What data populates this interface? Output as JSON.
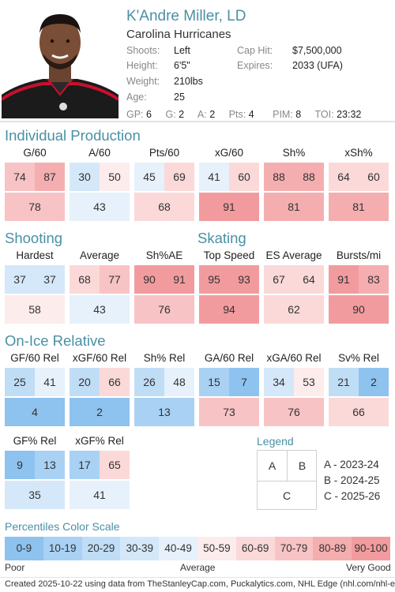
{
  "player": {
    "name": "K'Andre Miller, LD",
    "team": "Carolina Hurricanes",
    "shoots_label": "Shoots:",
    "shoots": "Left",
    "height_label": "Height:",
    "height": "6'5\"",
    "weight_label": "Weight:",
    "weight": "210lbs",
    "age_label": "Age:",
    "age": "25",
    "caphit_label": "Cap Hit:",
    "caphit": "$7,500,000",
    "expires_label": "Expires:",
    "expires": "2033 (UFA)"
  },
  "stats": {
    "gp_label": "GP:",
    "gp": "6",
    "g_label": "G:",
    "g": "2",
    "a_label": "A:",
    "a": "2",
    "pts_label": "Pts:",
    "pts": "4",
    "pim_label": "PIM:",
    "pim": "8",
    "toi_label": "TOI:",
    "toi": "23:32"
  },
  "sections": {
    "production": "Individual Production",
    "shooting": "Shooting",
    "skating": "Skating",
    "onice": "On-Ice Relative"
  },
  "tiles": [
    {
      "title": "G/60",
      "a": 74,
      "b": 87,
      "c": 78
    },
    {
      "title": "A/60",
      "a": 30,
      "b": 50,
      "c": 43
    },
    {
      "title": "Pts/60",
      "a": 45,
      "b": 69,
      "c": 68
    },
    {
      "title": "xG/60",
      "a": 41,
      "b": 60,
      "c": 91
    },
    {
      "title": "Sh%",
      "a": 88,
      "b": 88,
      "c": 81
    },
    {
      "title": "xSh%",
      "a": 64,
      "b": 60,
      "c": 81
    },
    {
      "title": "Hardest",
      "a": 37,
      "b": 37,
      "c": 58
    },
    {
      "title": "Average",
      "a": 68,
      "b": 77,
      "c": 43
    },
    {
      "title": "Sh%AE",
      "a": 90,
      "b": 91,
      "c": 76
    },
    {
      "title": "Top Speed",
      "a": 95,
      "b": 93,
      "c": 94
    },
    {
      "title": "ES Average",
      "a": 67,
      "b": 64,
      "c": 62
    },
    {
      "title": "Bursts/mi",
      "a": 91,
      "b": 83,
      "c": 90
    },
    {
      "title": "GF/60 Rel",
      "a": 25,
      "b": 41,
      "c": 4
    },
    {
      "title": "xGF/60 Rel",
      "a": 20,
      "b": 66,
      "c": 2
    },
    {
      "title": "Sh% Rel",
      "a": 26,
      "b": 48,
      "c": 13
    },
    {
      "title": "GA/60 Rel",
      "a": 15,
      "b": 7,
      "c": 73
    },
    {
      "title": "xGA/60 Rel",
      "a": 34,
      "b": 53,
      "c": 76
    },
    {
      "title": "Sv% Rel",
      "a": 21,
      "b": 2,
      "c": 66
    },
    {
      "title": "GF% Rel",
      "a": 9,
      "b": 13,
      "c": 35
    },
    {
      "title": "xGF% Rel",
      "a": 17,
      "b": 65,
      "c": 41
    }
  ],
  "legend": {
    "title": "Legend",
    "cell_a": "A",
    "cell_b": "B",
    "cell_c": "C",
    "line_a": "A - 2023-24",
    "line_b": "B - 2024-25",
    "line_c": "C - 2025-26"
  },
  "scale": {
    "title": "Percentiles Color Scale",
    "bins": [
      "0-9",
      "10-19",
      "20-29",
      "30-39",
      "40-49",
      "50-59",
      "60-69",
      "70-79",
      "80-89",
      "90-100"
    ],
    "colors": [
      "#8ec2ef",
      "#a9d1f3",
      "#c0ddf6",
      "#d4e8f9",
      "#e6f1fb",
      "#fdecec",
      "#fbd9d9",
      "#f8c3c4",
      "#f5aeb0",
      "#f29b9e"
    ],
    "low": "Poor",
    "mid": "Average",
    "high": "Very Good"
  },
  "footer": "Created 2025-10-22 using data from TheStanleyCap.com, Puckalytics.com, NHL Edge (nhl.com/nhl-edge)."
}
